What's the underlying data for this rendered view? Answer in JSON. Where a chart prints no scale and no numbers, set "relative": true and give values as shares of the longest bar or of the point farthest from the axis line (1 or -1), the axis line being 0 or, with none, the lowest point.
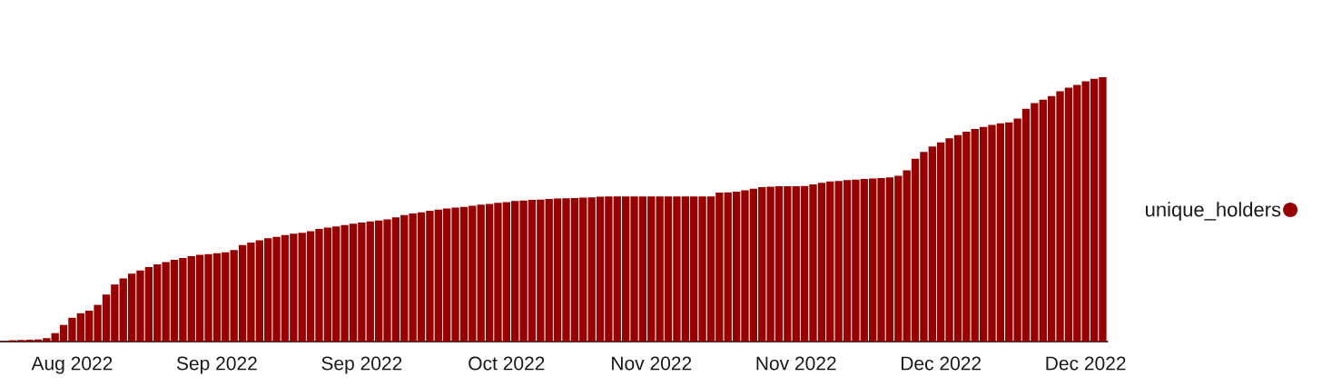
{
  "chart_data": {
    "type": "bar",
    "categories": [
      null,
      null,
      null,
      null,
      null,
      null,
      null,
      null,
      "Aug 2022",
      null,
      null,
      null,
      null,
      null,
      null,
      null,
      null,
      null,
      null,
      null,
      null,
      null,
      null,
      null,
      null,
      "Sep 2022",
      null,
      null,
      null,
      null,
      null,
      null,
      null,
      null,
      null,
      null,
      null,
      null,
      null,
      null,
      null,
      null,
      "Sep 2022",
      null,
      null,
      null,
      null,
      null,
      null,
      null,
      null,
      null,
      null,
      null,
      null,
      null,
      null,
      null,
      null,
      "Oct 2022",
      null,
      null,
      null,
      null,
      null,
      null,
      null,
      null,
      null,
      null,
      null,
      null,
      null,
      null,
      null,
      null,
      "Nov 2022",
      null,
      null,
      null,
      null,
      null,
      null,
      null,
      null,
      null,
      null,
      null,
      null,
      null,
      null,
      null,
      null,
      "Nov 2022",
      null,
      null,
      null,
      null,
      null,
      null,
      null,
      null,
      null,
      null,
      null,
      null,
      null,
      null,
      null,
      null,
      "Dec 2022",
      null,
      null,
      null,
      null,
      null,
      null,
      null,
      null,
      null,
      null,
      null,
      null,
      null,
      null,
      null,
      null,
      "Dec 2022",
      null,
      null
    ],
    "series": [
      {
        "name": "unique_holders",
        "color": "#960000",
        "values": [
          0.002,
          0.005,
          0.006,
          0.007,
          0.008,
          0.013,
          0.032,
          0.063,
          0.09,
          0.107,
          0.117,
          0.139,
          0.178,
          0.216,
          0.239,
          0.257,
          0.269,
          0.282,
          0.292,
          0.301,
          0.309,
          0.316,
          0.323,
          0.328,
          0.331,
          0.334,
          0.338,
          0.346,
          0.365,
          0.375,
          0.383,
          0.391,
          0.396,
          0.403,
          0.408,
          0.412,
          0.418,
          0.426,
          0.431,
          0.436,
          0.441,
          0.446,
          0.45,
          0.455,
          0.458,
          0.462,
          0.47,
          0.479,
          0.485,
          0.489,
          0.495,
          0.499,
          0.504,
          0.507,
          0.51,
          0.514,
          0.518,
          0.521,
          0.525,
          0.528,
          0.532,
          0.534,
          0.536,
          0.537,
          0.54,
          0.541,
          0.542,
          0.543,
          0.545,
          0.546,
          0.548,
          0.549,
          0.549,
          0.549,
          0.549,
          0.549,
          0.549,
          0.549,
          0.549,
          0.549,
          0.549,
          0.549,
          0.549,
          0.549,
          0.564,
          0.565,
          0.567,
          0.572,
          0.578,
          0.584,
          0.586,
          0.588,
          0.588,
          0.588,
          0.589,
          0.595,
          0.601,
          0.606,
          0.608,
          0.611,
          0.613,
          0.615,
          0.617,
          0.619,
          0.621,
          0.627,
          0.648,
          0.692,
          0.718,
          0.738,
          0.754,
          0.769,
          0.781,
          0.794,
          0.804,
          0.812,
          0.82,
          0.826,
          0.829,
          0.844,
          0.881,
          0.902,
          0.915,
          0.929,
          0.947,
          0.961,
          0.971,
          0.985,
          0.994,
          1.0
        ]
      }
    ],
    "relative": true,
    "legend": "right"
  }
}
